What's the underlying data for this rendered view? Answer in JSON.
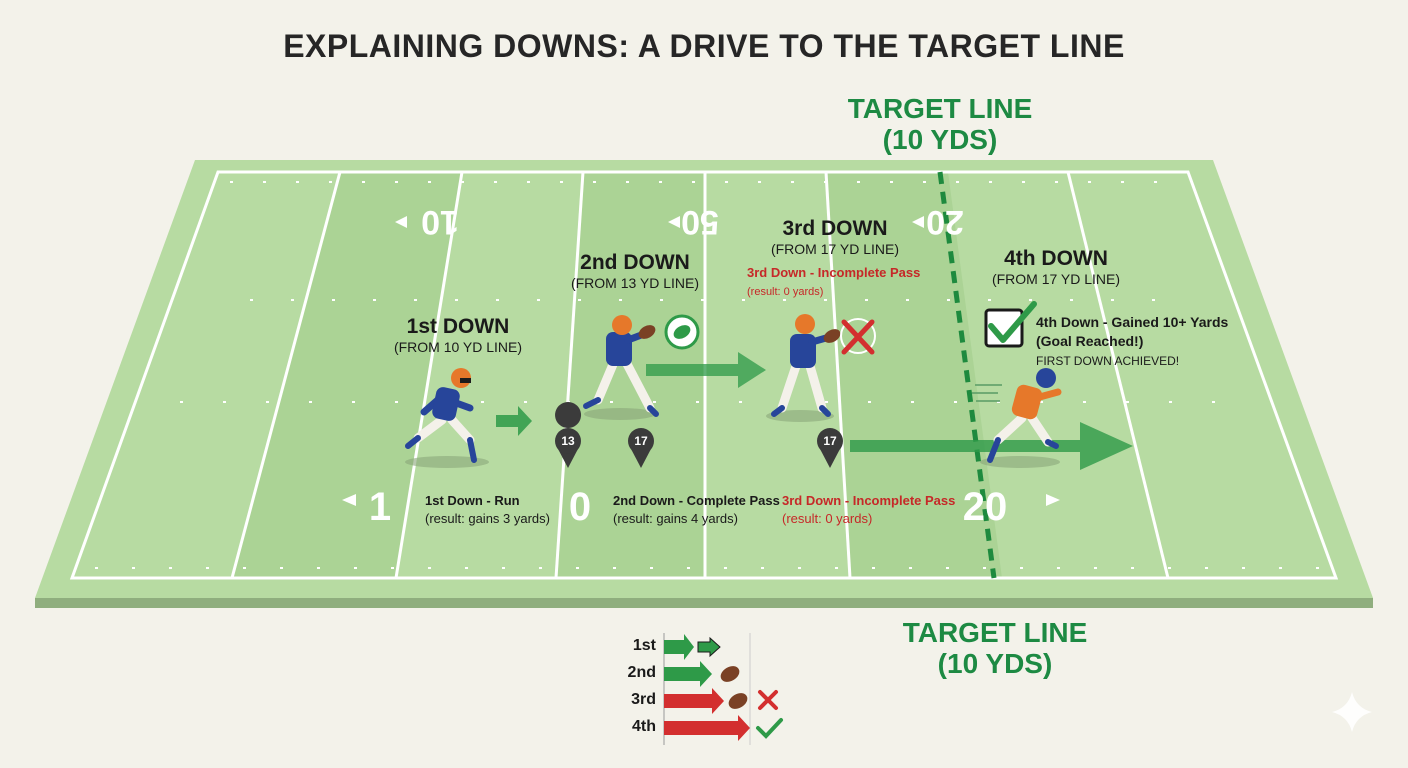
{
  "title": "EXPLAINING DOWNS: A DRIVE TO THE TARGET LINE",
  "target_line_top": {
    "line1": "TARGET LINE",
    "line2": "(10 YDS)"
  },
  "target_line_bottom": {
    "line1": "TARGET LINE",
    "line2": "(10 YDS)"
  },
  "yard_numbers": {
    "top": [
      "10",
      "50",
      "20"
    ],
    "bottom": [
      "1",
      "0",
      "20"
    ]
  },
  "downs": [
    {
      "heading": "1st DOWN",
      "sub": "(FROM 10 YD LINE)",
      "result_label": "1st Down - Run",
      "result_detail": "(result: gains 3 yards)"
    },
    {
      "heading": "2nd DOWN",
      "sub": "(FROM 13 YD LINE)",
      "result_label": "2nd Down - Complete Pass",
      "result_detail": "(result: gains 4 yards)"
    },
    {
      "heading": "3rd DOWN",
      "sub": "(FROM 17 YD LINE)",
      "mid_label": "3rd Down - Incomplete Pass",
      "mid_detail": "(result: 0 yards)",
      "result_label": "3rd Down - Incomplete Pass",
      "result_detail": "(result: 0 yards)"
    },
    {
      "heading": "4th DOWN",
      "sub": "(FROM 17 YD LINE)",
      "result_label": "4th Down - Gained 10+ Yards",
      "result_label2": "(Goal Reached!)",
      "result_detail": "FIRST DOWN ACHIEVED!"
    }
  ],
  "markers": [
    "13",
    "17",
    "17"
  ],
  "legend": [
    "1st",
    "2nd",
    "3rd",
    "4th"
  ],
  "colors": {
    "field": "#b5dca0",
    "field_edge": "#8fb07e",
    "green": "#2e9a48",
    "red": "#d32f2f",
    "jersey": "#27459a",
    "helmet_orange": "#e6782a"
  }
}
